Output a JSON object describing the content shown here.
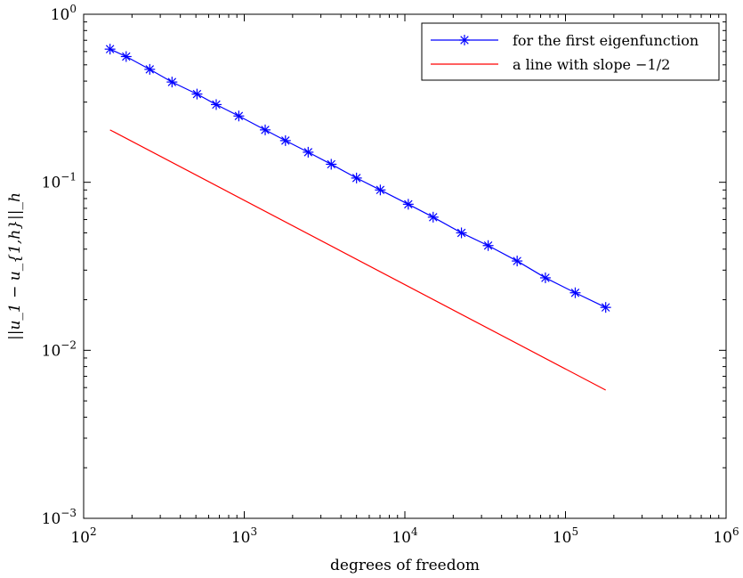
{
  "chart_data": {
    "type": "line",
    "xscale": "log",
    "yscale": "log",
    "xlim": [
      100,
      1000000
    ],
    "ylim": [
      0.001,
      1
    ],
    "xlabel": "degrees of freedom",
    "ylabel": "||u_1 − u_{1,h}||_h",
    "grid": false,
    "legend_position": "top-right",
    "x_ticks": [
      {
        "base": "10",
        "exp": "2",
        "value": 100
      },
      {
        "base": "10",
        "exp": "3",
        "value": 1000
      },
      {
        "base": "10",
        "exp": "4",
        "value": 10000
      },
      {
        "base": "10",
        "exp": "5",
        "value": 100000
      },
      {
        "base": "10",
        "exp": "6",
        "value": 1000000
      }
    ],
    "y_ticks": [
      {
        "base": "10",
        "exp": "−3",
        "value": 0.001
      },
      {
        "base": "10",
        "exp": "−2",
        "value": 0.01
      },
      {
        "base": "10",
        "exp": "−1",
        "value": 0.1
      },
      {
        "base": "10",
        "exp": "0",
        "value": 1
      }
    ],
    "series": [
      {
        "name": "for the first eigenfunction",
        "color": "#0000ff",
        "marker": "asterisk",
        "x": [
          146,
          184,
          258,
          355,
          508,
          669,
          925,
          1350,
          1805,
          2500,
          3480,
          5000,
          7030,
          10500,
          15000,
          22500,
          33000,
          50000,
          75000,
          115000,
          178000
        ],
        "y": [
          0.62,
          0.56,
          0.47,
          0.395,
          0.335,
          0.29,
          0.248,
          0.205,
          0.177,
          0.151,
          0.128,
          0.106,
          0.09,
          0.074,
          0.062,
          0.05,
          0.042,
          0.034,
          0.027,
          0.022,
          0.018
        ]
      },
      {
        "name": "a line with slope −1/2",
        "color": "#ff0000",
        "marker": "none",
        "x": [
          146,
          178000
        ],
        "y": [
          0.205,
          0.0058
        ]
      }
    ]
  }
}
